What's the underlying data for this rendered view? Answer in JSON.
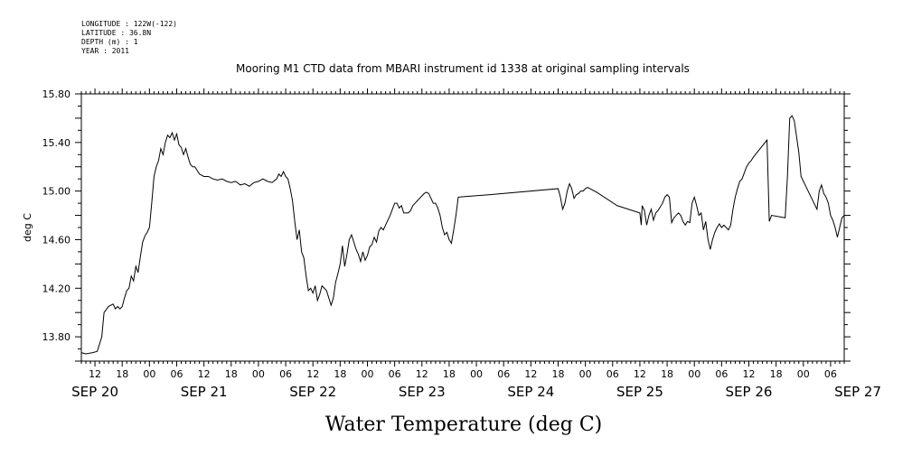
{
  "header": {
    "longitude": "LONGITUDE : 122W(-122)",
    "latitude": "LATITUDE : 36.8N",
    "depth": "DEPTH (m) : 1",
    "year": "YEAR : 2011"
  },
  "chart_data": {
    "type": "line",
    "title": "Mooring M1 CTD data from MBARI instrument id 1338 at original sampling intervals",
    "ylabel": "deg C",
    "bottom_label": "Water Temperature (deg C)",
    "ylim": [
      13.6,
      15.8
    ],
    "y_ticks": [
      "13.80",
      "14.20",
      "14.60",
      "15.00",
      "15.40",
      "15.80"
    ],
    "x_hour_labels": [
      "12",
      "18",
      "00",
      "06",
      "12",
      "18",
      "00",
      "06",
      "12",
      "18",
      "00",
      "06",
      "12",
      "18",
      "00",
      "06",
      "12",
      "18",
      "00",
      "06",
      "12",
      "18",
      "00",
      "06",
      "12",
      "18",
      "00",
      "06"
    ],
    "x_day_labels": [
      "SEP 20",
      "SEP 21",
      "SEP 22",
      "SEP 23",
      "SEP 24",
      "SEP 25",
      "SEP 26",
      "SEP 27"
    ],
    "x_unit": "hours since SEP 20 00:00",
    "xlim": [
      9,
      177
    ],
    "series": [
      {
        "values": [
          [
            9.0,
            13.67
          ],
          [
            10.0,
            13.66
          ],
          [
            11.5,
            13.67
          ],
          [
            12.5,
            13.68
          ],
          [
            13.5,
            13.8
          ],
          [
            14.0,
            14.0
          ],
          [
            15.0,
            14.05
          ],
          [
            16.0,
            14.07
          ],
          [
            16.5,
            14.03
          ],
          [
            17.0,
            14.05
          ],
          [
            17.5,
            14.03
          ],
          [
            18.0,
            14.05
          ],
          [
            18.5,
            14.12
          ],
          [
            19.0,
            14.18
          ],
          [
            19.5,
            14.2
          ],
          [
            20.0,
            14.3
          ],
          [
            20.5,
            14.26
          ],
          [
            21.0,
            14.38
          ],
          [
            21.5,
            14.33
          ],
          [
            22.0,
            14.46
          ],
          [
            22.5,
            14.58
          ],
          [
            23.0,
            14.63
          ],
          [
            23.5,
            14.66
          ],
          [
            24.0,
            14.7
          ],
          [
            24.5,
            14.9
          ],
          [
            25.0,
            15.12
          ],
          [
            25.5,
            15.2
          ],
          [
            26.0,
            15.25
          ],
          [
            26.5,
            15.35
          ],
          [
            27.0,
            15.3
          ],
          [
            27.5,
            15.4
          ],
          [
            28.0,
            15.46
          ],
          [
            28.5,
            15.44
          ],
          [
            29.0,
            15.48
          ],
          [
            29.5,
            15.42
          ],
          [
            30.0,
            15.47
          ],
          [
            30.5,
            15.38
          ],
          [
            31.0,
            15.36
          ],
          [
            31.5,
            15.3
          ],
          [
            32.0,
            15.35
          ],
          [
            32.5,
            15.28
          ],
          [
            33.0,
            15.22
          ],
          [
            33.5,
            15.2
          ],
          [
            34.0,
            15.2
          ],
          [
            35.0,
            15.14
          ],
          [
            36.0,
            15.12
          ],
          [
            37.0,
            15.12
          ],
          [
            38.0,
            15.1
          ],
          [
            39.0,
            15.09
          ],
          [
            40.0,
            15.1
          ],
          [
            41.0,
            15.08
          ],
          [
            42.0,
            15.07
          ],
          [
            43.0,
            15.08
          ],
          [
            44.0,
            15.05
          ],
          [
            45.0,
            15.06
          ],
          [
            46.0,
            15.04
          ],
          [
            47.0,
            15.07
          ],
          [
            48.0,
            15.08
          ],
          [
            49.0,
            15.1
          ],
          [
            50.0,
            15.08
          ],
          [
            51.0,
            15.07
          ],
          [
            52.0,
            15.1
          ],
          [
            52.5,
            15.14
          ],
          [
            53.0,
            15.12
          ],
          [
            53.5,
            15.16
          ],
          [
            54.0,
            15.12
          ],
          [
            54.5,
            15.1
          ],
          [
            55.0,
            15.02
          ],
          [
            55.5,
            14.92
          ],
          [
            56.0,
            14.75
          ],
          [
            56.5,
            14.6
          ],
          [
            57.0,
            14.68
          ],
          [
            57.5,
            14.5
          ],
          [
            58.0,
            14.45
          ],
          [
            58.5,
            14.3
          ],
          [
            59.0,
            14.18
          ],
          [
            59.5,
            14.2
          ],
          [
            60.0,
            14.16
          ],
          [
            60.5,
            14.22
          ],
          [
            61.0,
            14.1
          ],
          [
            61.5,
            14.15
          ],
          [
            62.0,
            14.22
          ],
          [
            62.5,
            14.2
          ],
          [
            63.0,
            14.18
          ],
          [
            63.5,
            14.12
          ],
          [
            64.0,
            14.06
          ],
          [
            64.5,
            14.12
          ],
          [
            65.0,
            14.25
          ],
          [
            65.5,
            14.32
          ],
          [
            66.0,
            14.4
          ],
          [
            66.5,
            14.55
          ],
          [
            67.0,
            14.38
          ],
          [
            67.5,
            14.48
          ],
          [
            68.0,
            14.6
          ],
          [
            68.5,
            14.64
          ],
          [
            69.0,
            14.58
          ],
          [
            69.5,
            14.52
          ],
          [
            70.0,
            14.48
          ],
          [
            70.5,
            14.42
          ],
          [
            71.0,
            14.5
          ],
          [
            71.5,
            14.43
          ],
          [
            72.0,
            14.47
          ],
          [
            72.5,
            14.54
          ],
          [
            73.0,
            14.56
          ],
          [
            73.5,
            14.62
          ],
          [
            74.0,
            14.58
          ],
          [
            74.5,
            14.67
          ],
          [
            75.0,
            14.7
          ],
          [
            75.5,
            14.68
          ],
          [
            76.0,
            14.72
          ],
          [
            76.5,
            14.76
          ],
          [
            77.0,
            14.8
          ],
          [
            77.5,
            14.85
          ],
          [
            78.0,
            14.9
          ],
          [
            78.5,
            14.9
          ],
          [
            79.0,
            14.86
          ],
          [
            79.5,
            14.88
          ],
          [
            80.0,
            14.82
          ],
          [
            80.5,
            14.82
          ],
          [
            81.0,
            14.82
          ],
          [
            81.5,
            14.84
          ],
          [
            82.0,
            14.88
          ],
          [
            82.5,
            14.9
          ],
          [
            83.0,
            14.92
          ],
          [
            83.5,
            14.94
          ],
          [
            84.0,
            14.96
          ],
          [
            84.5,
            14.98
          ],
          [
            85.0,
            14.99
          ],
          [
            85.5,
            14.98
          ],
          [
            86.0,
            14.94
          ],
          [
            86.5,
            14.9
          ],
          [
            87.0,
            14.9
          ],
          [
            87.5,
            14.86
          ],
          [
            88.0,
            14.8
          ],
          [
            88.5,
            14.7
          ],
          [
            89.0,
            14.64
          ],
          [
            89.5,
            14.66
          ],
          [
            90.0,
            14.6
          ],
          [
            90.5,
            14.57
          ],
          [
            91.0,
            14.68
          ],
          [
            91.5,
            14.8
          ],
          [
            92.0,
            14.95
          ],
          [
            99.0,
            14.97
          ],
          [
            114.0,
            15.02
          ],
          [
            114.5,
            14.95
          ],
          [
            115.0,
            14.85
          ],
          [
            115.5,
            14.9
          ],
          [
            116.0,
            15.0
          ],
          [
            116.5,
            15.06
          ],
          [
            117.0,
            15.02
          ],
          [
            117.5,
            14.94
          ],
          [
            118.0,
            14.97
          ],
          [
            118.5,
            14.98
          ],
          [
            119.0,
            15.0
          ],
          [
            119.5,
            15.0
          ],
          [
            120.0,
            15.02
          ],
          [
            120.5,
            15.03
          ],
          [
            121.0,
            15.02
          ],
          [
            121.5,
            15.01
          ],
          [
            122.0,
            15.0
          ],
          [
            122.5,
            14.99
          ],
          [
            127.0,
            14.88
          ],
          [
            132.0,
            14.82
          ],
          [
            132.3,
            14.72
          ],
          [
            132.5,
            14.88
          ],
          [
            133.0,
            14.84
          ],
          [
            133.5,
            14.72
          ],
          [
            134.0,
            14.8
          ],
          [
            134.5,
            14.85
          ],
          [
            135.0,
            14.76
          ],
          [
            135.5,
            14.82
          ],
          [
            136.0,
            14.84
          ],
          [
            137.0,
            14.9
          ],
          [
            137.5,
            14.95
          ],
          [
            138.0,
            14.97
          ],
          [
            138.5,
            14.95
          ],
          [
            139.0,
            14.74
          ],
          [
            139.5,
            14.78
          ],
          [
            140.0,
            14.8
          ],
          [
            140.5,
            14.82
          ],
          [
            141.0,
            14.8
          ],
          [
            141.5,
            14.75
          ],
          [
            142.0,
            14.72
          ],
          [
            142.5,
            14.75
          ],
          [
            143.0,
            14.74
          ],
          [
            143.5,
            14.9
          ],
          [
            144.0,
            14.95
          ],
          [
            144.5,
            14.88
          ],
          [
            145.0,
            14.8
          ],
          [
            145.5,
            14.82
          ],
          [
            146.0,
            14.68
          ],
          [
            146.5,
            14.75
          ],
          [
            147.0,
            14.6
          ],
          [
            147.5,
            14.52
          ],
          [
            148.0,
            14.6
          ],
          [
            148.5,
            14.66
          ],
          [
            149.0,
            14.7
          ],
          [
            149.5,
            14.73
          ],
          [
            150.0,
            14.7
          ],
          [
            150.5,
            14.72
          ],
          [
            151.0,
            14.7
          ],
          [
            151.5,
            14.68
          ],
          [
            152.0,
            14.72
          ],
          [
            152.5,
            14.85
          ],
          [
            153.0,
            14.95
          ],
          [
            153.5,
            15.02
          ],
          [
            154.0,
            15.08
          ],
          [
            154.5,
            15.1
          ],
          [
            155.0,
            15.15
          ],
          [
            155.5,
            15.2
          ],
          [
            156.0,
            15.23
          ],
          [
            156.5,
            15.25
          ],
          [
            157.0,
            15.28
          ],
          [
            160.0,
            15.42
          ],
          [
            160.5,
            14.75
          ],
          [
            161.0,
            14.8
          ],
          [
            164.0,
            14.78
          ],
          [
            164.5,
            15.12
          ],
          [
            165.0,
            15.6
          ],
          [
            165.5,
            15.62
          ],
          [
            166.0,
            15.58
          ],
          [
            167.0,
            15.32
          ],
          [
            167.5,
            15.12
          ],
          [
            171.0,
            14.85
          ],
          [
            171.5,
            15.0
          ],
          [
            172.0,
            15.05
          ],
          [
            172.5,
            14.98
          ],
          [
            173.0,
            14.95
          ],
          [
            173.5,
            14.9
          ],
          [
            174.0,
            14.8
          ],
          [
            174.5,
            14.76
          ],
          [
            175.0,
            14.7
          ],
          [
            175.5,
            14.62
          ],
          [
            176.0,
            14.7
          ],
          [
            176.5,
            14.78
          ],
          [
            177.0,
            14.8
          ]
        ]
      }
    ]
  }
}
